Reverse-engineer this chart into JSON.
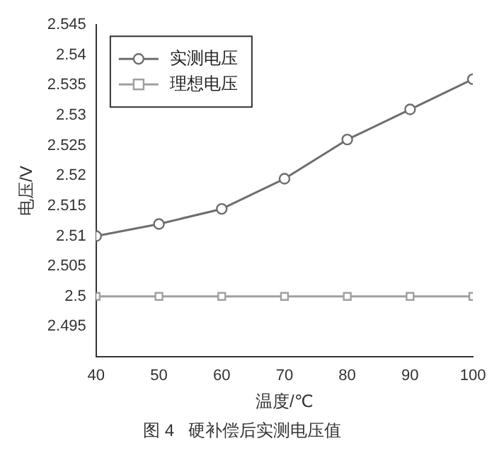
{
  "chart_data": {
    "type": "line",
    "title": "图 4   硬补偿后实测电压值",
    "xlabel": "温度/℃",
    "ylabel": "电压/V",
    "x": [
      40,
      50,
      60,
      70,
      80,
      90,
      100
    ],
    "series": [
      {
        "name": "实测电压",
        "color": "#6e6e6e",
        "marker": "circle",
        "values": [
          2.51,
          2.512,
          2.5145,
          2.5195,
          2.526,
          2.531,
          2.536
        ]
      },
      {
        "name": "理想电压",
        "color": "#a0a0a0",
        "marker": "square",
        "values": [
          2.5,
          2.5,
          2.5,
          2.5,
          2.5,
          2.5,
          2.5
        ]
      }
    ],
    "xlim": [
      40,
      100
    ],
    "xticks": [
      40,
      50,
      60,
      70,
      80,
      90,
      100
    ],
    "ylim": [
      2.49,
      2.545
    ],
    "yticks": [
      2.495,
      2.5,
      2.505,
      2.51,
      2.515,
      2.52,
      2.525,
      2.53,
      2.535,
      2.54,
      2.545
    ],
    "grid": false,
    "legend": "top left"
  }
}
